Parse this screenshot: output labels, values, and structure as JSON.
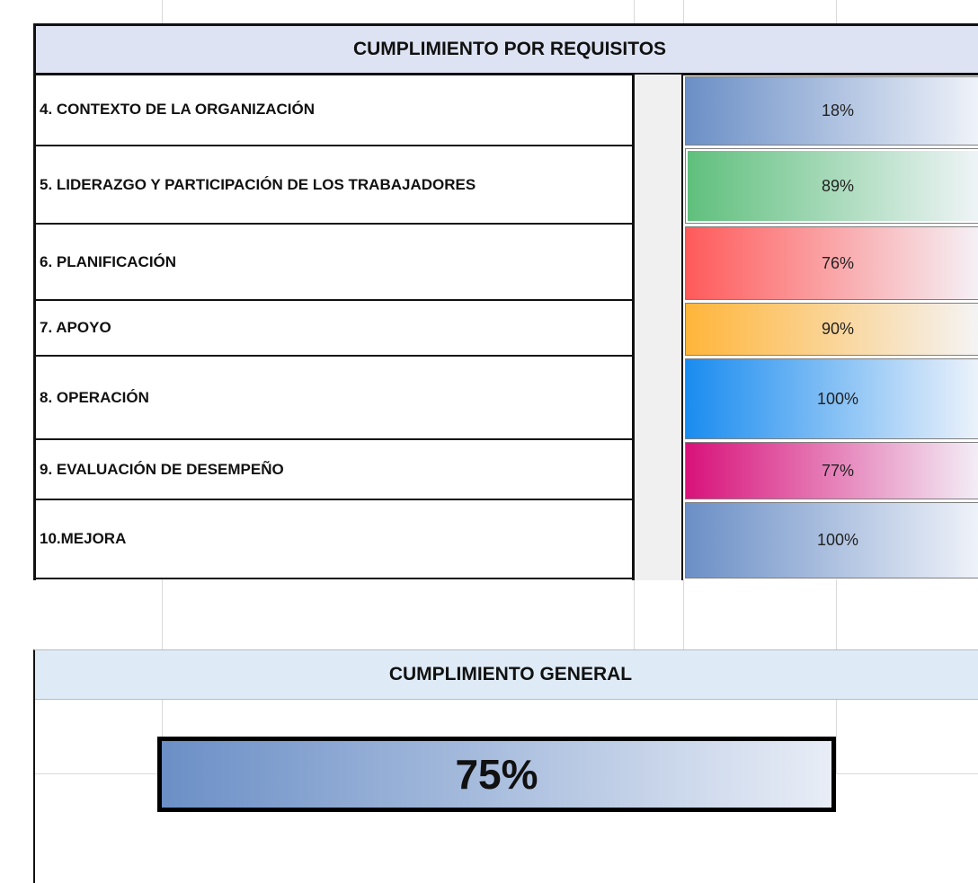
{
  "requirements": {
    "title": "CUMPLIMIENTO POR REQUISITOS",
    "rows": [
      {
        "label": "4. CONTEXTO DE LA ORGANIZACIÓN",
        "value": "18%"
      },
      {
        "label": "5. LIDERAZGO  Y  PARTICIPACIÓN DE LOS TRABAJADORES",
        "value": "89%"
      },
      {
        "label": "6. PLANIFICACIÓN",
        "value": "76%"
      },
      {
        "label": "7. APOYO",
        "value": "90%"
      },
      {
        "label": "8. OPERACIÓN",
        "value": "100%"
      },
      {
        "label": "9. EVALUACIÓN DE DESEMPEÑO",
        "value": "77%"
      },
      {
        "label": "10.MEJORA",
        "value": "100%"
      }
    ]
  },
  "general": {
    "title": "CUMPLIMIENTO GENERAL",
    "value": "75%"
  }
}
